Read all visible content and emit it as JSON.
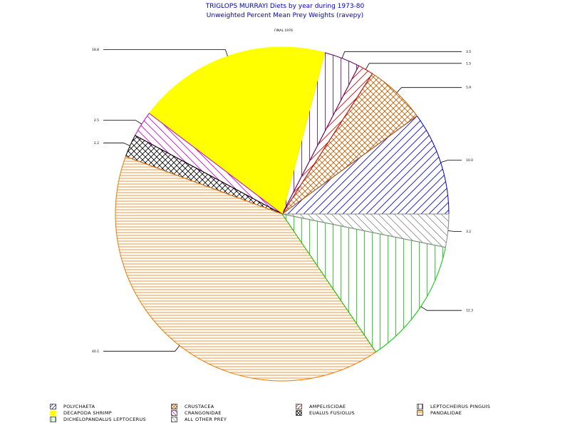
{
  "chart_data": {
    "type": "pie",
    "title": "TRIGLOPS MURRAYI Diets by year during 1973-80",
    "subtitle": "Unweighted Percent Mean Prey Weights (ravepy)",
    "year_label": "FINAL 1976",
    "slices": [
      {
        "name": "POLYCHAETA",
        "value": 10.0,
        "label": "10.0",
        "color": "#0000cc",
        "pattern": "diag-up"
      },
      {
        "name": "CRUSTACEA",
        "value": 5.9,
        "label": "5.9",
        "color": "#b85a00",
        "pattern": "cross-hatch"
      },
      {
        "name": "AMPELISCIDAE",
        "value": 1.5,
        "label": "1.5",
        "color": "#cc0000",
        "pattern": "diag-up"
      },
      {
        "name": "LEPTOCHEIRUS PINGUIS",
        "value": 3.5,
        "label": "3.5",
        "color": "#660066",
        "pattern": "vertical"
      },
      {
        "name": "DECAPODA SHRIMP",
        "value": 18.8,
        "label": "18.8",
        "color": "#ffff00",
        "pattern": "solid"
      },
      {
        "name": "CRANGONIDAE",
        "value": 2.5,
        "label": "2.5",
        "color": "#cc00cc",
        "pattern": "diag-down"
      },
      {
        "name": "EUALUS FUSIOLUS",
        "value": 2.2,
        "label": "2.2",
        "color": "#000000",
        "pattern": "cross-hatch"
      },
      {
        "name": "PANDALIDAE",
        "value": 40.1,
        "label": "40.1",
        "color": "#ee7700",
        "pattern": "horizontal"
      },
      {
        "name": "DICHELOPANDALUS LEPTOCERUS",
        "value": 12.3,
        "label": "12.3",
        "color": "#00cc00",
        "pattern": "vertical"
      },
      {
        "name": "ALL OTHER PREY",
        "value": 3.2,
        "label": "3.2",
        "color": "#888888",
        "pattern": "diag-down"
      }
    ]
  },
  "legend": {
    "items": [
      {
        "name": "POLYCHAETA",
        "pattern": "diag-up",
        "color": "#0000cc"
      },
      {
        "name": "CRUSTACEA",
        "pattern": "cross-hatch",
        "color": "#b85a00"
      },
      {
        "name": "AMPELISCIDAE",
        "pattern": "diag-up",
        "color": "#cc0000"
      },
      {
        "name": "LEPTOCHEIRUS PINGUIS",
        "pattern": "vertical",
        "color": "#660066"
      },
      {
        "name": "DECAPODA SHRIMP",
        "pattern": "solid",
        "color": "#ffff00"
      },
      {
        "name": "CRANGONIDAE",
        "pattern": "diag-down",
        "color": "#cc00cc"
      },
      {
        "name": "EUALUS FUSIOLUS",
        "pattern": "cross-hatch",
        "color": "#000000"
      },
      {
        "name": "PANDALIDAE",
        "pattern": "horizontal",
        "color": "#ee7700"
      },
      {
        "name": "DICHELOPANDALUS LEPTOCERUS",
        "pattern": "vertical",
        "color": "#00cc00"
      },
      {
        "name": "ALL OTHER PREY",
        "pattern": "diag-down",
        "color": "#888888"
      }
    ]
  }
}
